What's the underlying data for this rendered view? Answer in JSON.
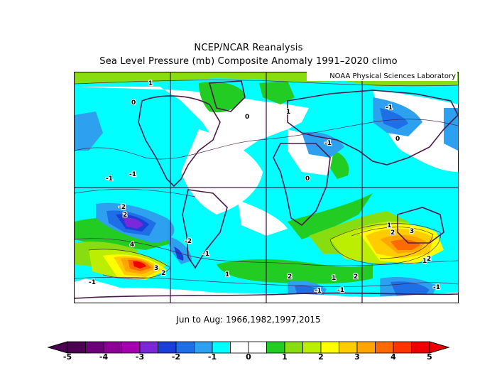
{
  "title_line1": "NCEP/NCAR Reanalysis",
  "title_line2": "Sea Level Pressure (mb) Composite Anomaly 1991–2020 climo",
  "credit": "NOAA Physical Sciences Laboratory",
  "subtitle": "Jun to Aug: 1966,1982,1997,2015",
  "colorbar": {
    "colors": [
      "#4b0052",
      "#6a0078",
      "#8c0096",
      "#a400b0",
      "#7a28d8",
      "#1a3fd8",
      "#1e6fe6",
      "#2da0f0",
      "#00ffff",
      "#ffffff",
      "#ffffff",
      "#22cc22",
      "#88dd11",
      "#bbee00",
      "#ffff00",
      "#ffcc00",
      "#ffa500",
      "#ff6a00",
      "#ff3300",
      "#ee0000"
    ],
    "ticks": [
      "-5",
      "-4",
      "-3",
      "-2",
      "-1",
      "0",
      "1",
      "2",
      "3",
      "4",
      "5"
    ]
  },
  "map_labels": [
    {
      "text": "1"
    },
    {
      "text": "0"
    },
    {
      "text": "-1"
    },
    {
      "text": "0"
    },
    {
      "text": "-1"
    },
    {
      "text": "-1"
    },
    {
      "text": "-2"
    },
    {
      "text": "2"
    },
    {
      "text": "4"
    },
    {
      "text": "3"
    },
    {
      "text": "2"
    },
    {
      "text": "-2"
    },
    {
      "text": "-1"
    },
    {
      "text": "1"
    },
    {
      "text": "2"
    },
    {
      "text": "2"
    },
    {
      "text": "3"
    },
    {
      "text": "2"
    },
    {
      "text": "1"
    },
    {
      "text": "-1"
    },
    {
      "text": "-1"
    },
    {
      "text": "-1"
    },
    {
      "text": "0"
    },
    {
      "text": "1"
    },
    {
      "text": "-1"
    },
    {
      "text": "1"
    },
    {
      "text": "2"
    },
    {
      "text": "0"
    },
    {
      "text": "1"
    },
    {
      "text": "-1"
    }
  ]
}
